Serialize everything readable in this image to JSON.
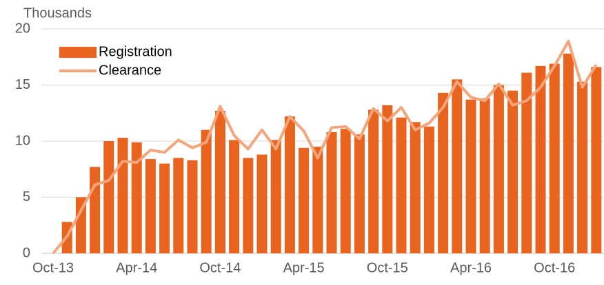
{
  "chart_data": {
    "type": "bar_line",
    "y_axis_label": "Thousands",
    "categories": [
      "Oct-13",
      null,
      null,
      null,
      null,
      null,
      "Apr-14",
      null,
      null,
      null,
      null,
      null,
      "Oct-14",
      null,
      null,
      null,
      null,
      null,
      "Apr-15",
      null,
      null,
      null,
      null,
      null,
      "Oct-15",
      null,
      null,
      null,
      null,
      null,
      "Apr-16",
      null,
      null,
      null,
      null,
      null,
      "Oct-16",
      null,
      null,
      null
    ],
    "series": [
      {
        "name": "Registration",
        "type": "bar",
        "color": "#e8641e",
        "values": [
          0,
          2.8,
          5.0,
          7.7,
          10.0,
          10.3,
          9.9,
          8.4,
          8.0,
          8.5,
          8.3,
          11.0,
          12.7,
          10.1,
          8.5,
          8.8,
          10.1,
          12.2,
          9.4,
          9.5,
          10.8,
          11.1,
          10.6,
          12.8,
          13.2,
          12.1,
          11.7,
          11.3,
          14.3,
          15.5,
          13.7,
          13.8,
          15.0,
          14.5,
          16.1,
          16.7,
          16.9,
          17.8,
          15.3,
          16.6
        ]
      },
      {
        "name": "Clearance",
        "type": "line",
        "color": "#f4a57b",
        "values": [
          0,
          1.5,
          3.8,
          6.1,
          6.5,
          8.2,
          8.1,
          9.2,
          9.0,
          10.1,
          9.4,
          9.9,
          13.1,
          10.5,
          9.3,
          11.0,
          9.3,
          12.2,
          10.9,
          8.5,
          11.2,
          11.3,
          10.2,
          12.9,
          11.8,
          13.0,
          11.0,
          11.6,
          13.0,
          15.3,
          13.9,
          13.6,
          15.1,
          13.2,
          13.6,
          14.8,
          16.7,
          18.9,
          14.8,
          16.8
        ]
      }
    ],
    "ylim": [
      0,
      20
    ],
    "yticks": [
      0,
      5,
      10,
      15,
      20
    ],
    "grid": true,
    "legend": "top-left"
  }
}
